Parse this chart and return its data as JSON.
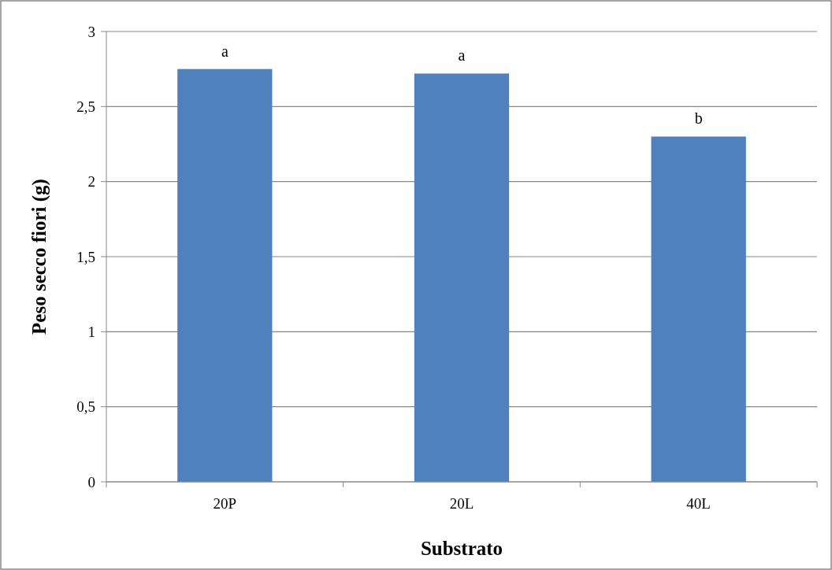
{
  "chart_data": {
    "type": "bar",
    "xlabel": "Substrato",
    "ylabel": "Peso secco fiori (g)",
    "categories": [
      "20P",
      "20L",
      "40L"
    ],
    "values": [
      2.75,
      2.72,
      2.3
    ],
    "color": "#4f81bd",
    "ylim": [
      0,
      3
    ],
    "yticks": [
      0,
      {
        "value": 0.5,
        "label": "0,5"
      },
      1,
      {
        "value": 1.5,
        "label": "1,5"
      },
      2,
      {
        "value": 2.5,
        "label": "2,5"
      },
      3
    ],
    "grid": "y",
    "annotations": [
      {
        "text": "a",
        "x": "20P",
        "y": 2.75
      },
      {
        "text": "a",
        "x": "20L",
        "y": 2.72
      },
      {
        "text": "b",
        "x": "40L",
        "y": 2.3
      }
    ]
  }
}
